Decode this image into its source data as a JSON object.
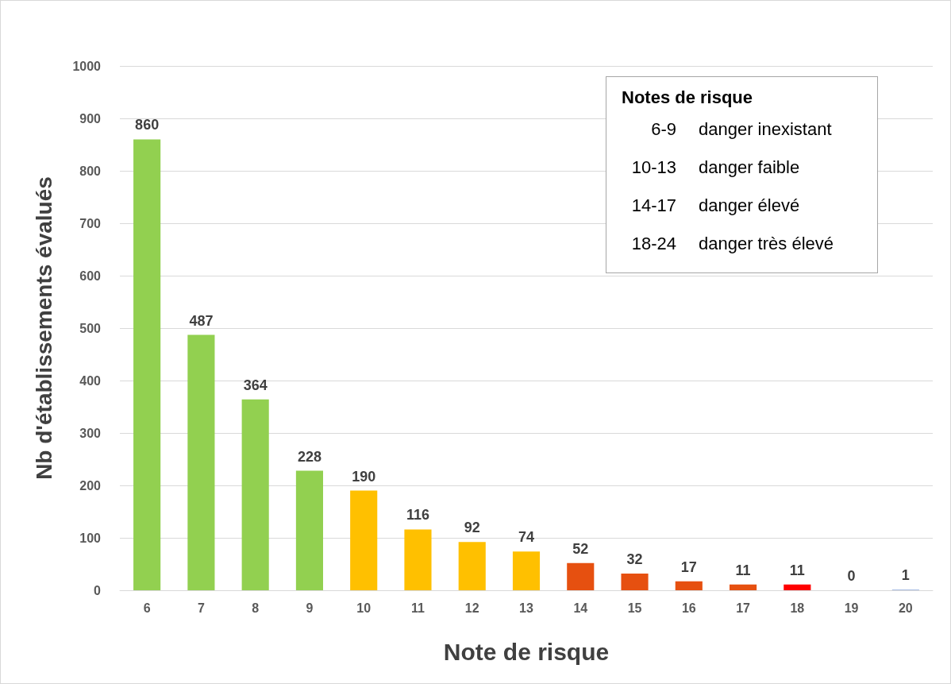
{
  "chart_data": {
    "type": "bar",
    "xlabel": "Note de risque",
    "ylabel": "Nb d'établissements évalués",
    "categories": [
      "6",
      "7",
      "8",
      "9",
      "10",
      "11",
      "12",
      "13",
      "14",
      "15",
      "16",
      "17",
      "18",
      "19",
      "20"
    ],
    "values": [
      860,
      487,
      364,
      228,
      190,
      116,
      92,
      74,
      52,
      32,
      17,
      11,
      11,
      0,
      1
    ],
    "colors": [
      "#92d050",
      "#92d050",
      "#92d050",
      "#92d050",
      "#ffc000",
      "#ffc000",
      "#ffc000",
      "#ffc000",
      "#e65010",
      "#e65010",
      "#e65010",
      "#e65010",
      "#ff0000",
      "#ff0000",
      "#8faadc"
    ],
    "ylim": [
      0,
      1000
    ],
    "yticks": [
      0,
      100,
      200,
      300,
      400,
      500,
      600,
      700,
      800,
      900,
      1000
    ],
    "grid": "y",
    "data_labels": true,
    "annotations": [
      "Notes de risque",
      "6-9",
      "danger inexistant",
      "10-13",
      "danger faible",
      "14-17",
      "danger élevé",
      "18-24",
      "danger très élevé"
    ]
  }
}
